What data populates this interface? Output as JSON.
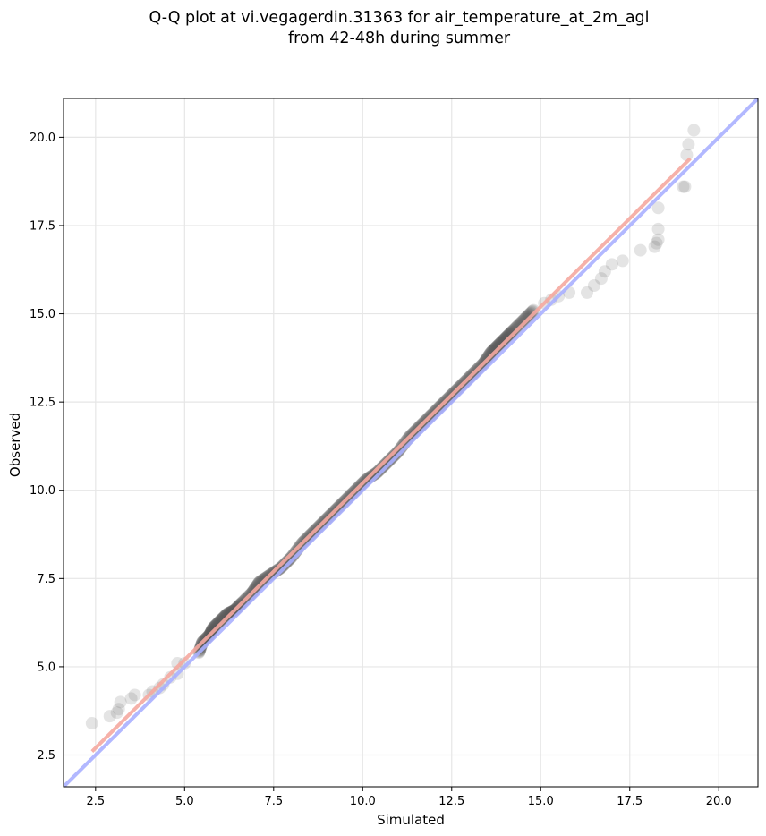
{
  "chart_data": {
    "type": "scatter",
    "title_lines": [
      "Q-Q plot at vi.vegagerdin.31363 for air_temperature_at_2m_agl",
      "from 42-48h during summer"
    ],
    "xlabel": "Simulated",
    "ylabel": "Observed",
    "xlim": [
      1.6,
      21.1
    ],
    "ylim": [
      1.6,
      21.1
    ],
    "xticks": [
      2.5,
      5.0,
      7.5,
      10.0,
      12.5,
      15.0,
      17.5,
      20.0
    ],
    "yticks": [
      2.5,
      5.0,
      7.5,
      10.0,
      12.5,
      15.0,
      17.5,
      20.0
    ],
    "xtick_labels": [
      "2.5",
      "5.0",
      "7.5",
      "10.0",
      "12.5",
      "15.0",
      "17.5",
      "20.0"
    ],
    "ytick_labels": [
      "2.5",
      "5.0",
      "7.5",
      "10.0",
      "12.5",
      "15.0",
      "17.5",
      "20.0"
    ],
    "grid": true,
    "series": [
      {
        "kind": "points",
        "color": "#555555",
        "points": [
          [
            2.4,
            3.4
          ],
          [
            2.9,
            3.6
          ],
          [
            3.1,
            3.7
          ],
          [
            3.15,
            3.8
          ],
          [
            3.2,
            4.0
          ],
          [
            3.5,
            4.1
          ],
          [
            3.6,
            4.2
          ],
          [
            4.0,
            4.2
          ],
          [
            4.1,
            4.3
          ],
          [
            4.3,
            4.4
          ],
          [
            4.4,
            4.5
          ],
          [
            4.6,
            4.7
          ],
          [
            4.8,
            4.8
          ],
          [
            4.8,
            5.1
          ],
          [
            5.0,
            5.1
          ],
          [
            5.4,
            5.4
          ],
          [
            5.5,
            5.7
          ],
          [
            5.7,
            5.9
          ],
          [
            5.8,
            6.1
          ],
          [
            6.0,
            6.3
          ],
          [
            6.2,
            6.5
          ],
          [
            6.4,
            6.6
          ],
          [
            6.6,
            6.8
          ],
          [
            6.9,
            7.1
          ],
          [
            7.1,
            7.4
          ],
          [
            7.4,
            7.6
          ],
          [
            7.7,
            7.8
          ],
          [
            8.0,
            8.1
          ],
          [
            8.3,
            8.5
          ],
          [
            8.6,
            8.8
          ],
          [
            8.9,
            9.1
          ],
          [
            9.2,
            9.4
          ],
          [
            9.5,
            9.7
          ],
          [
            9.8,
            10.0
          ],
          [
            10.1,
            10.3
          ],
          [
            10.4,
            10.5
          ],
          [
            10.7,
            10.8
          ],
          [
            11.0,
            11.1
          ],
          [
            11.3,
            11.5
          ],
          [
            11.6,
            11.8
          ],
          [
            11.9,
            12.1
          ],
          [
            12.2,
            12.4
          ],
          [
            12.5,
            12.7
          ],
          [
            12.8,
            13.0
          ],
          [
            13.1,
            13.3
          ],
          [
            13.4,
            13.6
          ],
          [
            13.6,
            13.9
          ],
          [
            13.8,
            14.1
          ],
          [
            14.0,
            14.3
          ],
          [
            14.2,
            14.5
          ],
          [
            14.5,
            14.8
          ],
          [
            14.8,
            15.1
          ],
          [
            15.1,
            15.3
          ],
          [
            15.3,
            15.4
          ],
          [
            15.5,
            15.5
          ],
          [
            15.8,
            15.6
          ],
          [
            16.3,
            15.6
          ],
          [
            16.5,
            15.8
          ],
          [
            16.7,
            16.0
          ],
          [
            16.8,
            16.2
          ],
          [
            17.0,
            16.4
          ],
          [
            17.3,
            16.5
          ],
          [
            17.8,
            16.8
          ],
          [
            18.2,
            16.9
          ],
          [
            18.25,
            17.0
          ],
          [
            18.3,
            17.1
          ],
          [
            18.3,
            17.4
          ],
          [
            18.3,
            18.0
          ],
          [
            19.0,
            18.6
          ],
          [
            19.05,
            18.6
          ],
          [
            19.1,
            19.5
          ],
          [
            19.15,
            19.8
          ],
          [
            19.3,
            20.2
          ]
        ]
      },
      {
        "kind": "line",
        "name_visible": false,
        "color": "#aab0ff",
        "x": [
          1.6,
          21.1
        ],
        "y": [
          1.6,
          21.1
        ]
      },
      {
        "kind": "line",
        "name_visible": false,
        "color": "#f5a8a0",
        "x": [
          2.4,
          19.2
        ],
        "y": [
          2.6,
          19.4
        ]
      }
    ]
  }
}
